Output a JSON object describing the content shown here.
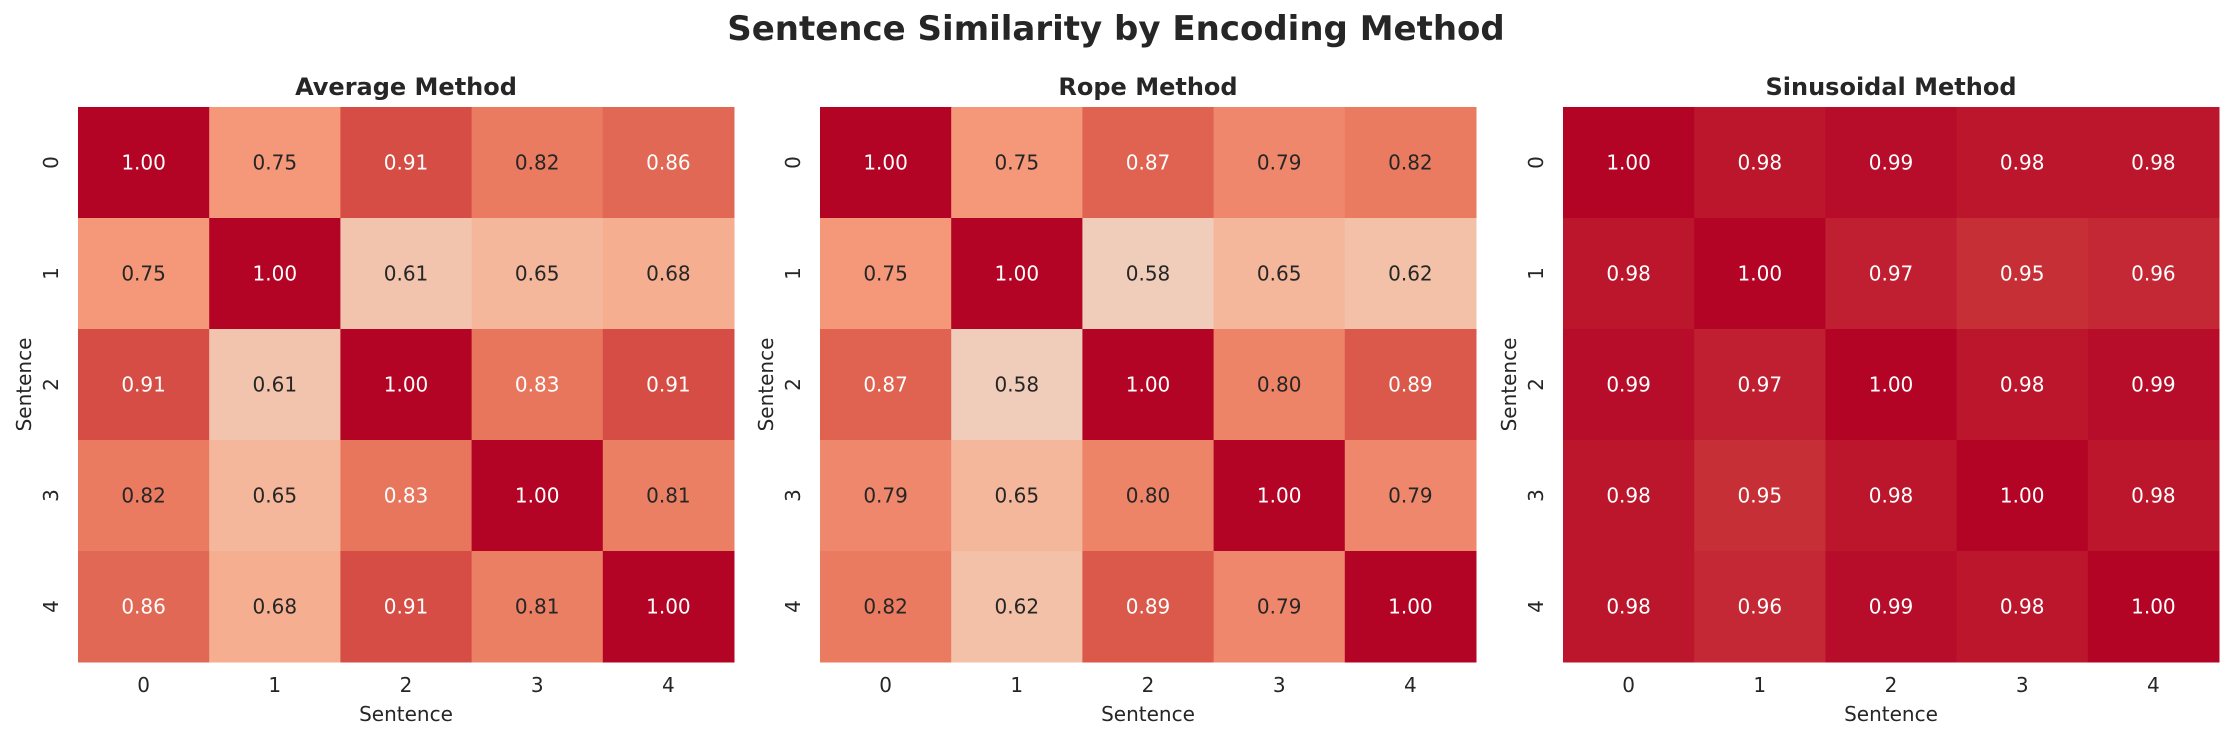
{
  "chart_data": {
    "title": "Sentence Similarity by Encoding Method",
    "panels": [
      {
        "type": "heatmap",
        "title": "Average Method",
        "xlabel": "Sentence",
        "ylabel": "Sentence",
        "x": [
          "0",
          "1",
          "2",
          "3",
          "4"
        ],
        "y": [
          "0",
          "1",
          "2",
          "3",
          "4"
        ],
        "values": [
          [
            1.0,
            0.75,
            0.91,
            0.82,
            0.86
          ],
          [
            0.75,
            1.0,
            0.61,
            0.65,
            0.68
          ],
          [
            0.91,
            0.61,
            1.0,
            0.83,
            0.91
          ],
          [
            0.82,
            0.65,
            0.83,
            1.0,
            0.81
          ],
          [
            0.86,
            0.68,
            0.91,
            0.81,
            1.0
          ]
        ],
        "colormap": "coolwarm",
        "vmin": 0,
        "vmax": 1,
        "colorbar": false
      },
      {
        "type": "heatmap",
        "title": "Rope Method",
        "xlabel": "Sentence",
        "ylabel": "Sentence",
        "x": [
          "0",
          "1",
          "2",
          "3",
          "4"
        ],
        "y": [
          "0",
          "1",
          "2",
          "3",
          "4"
        ],
        "values": [
          [
            1.0,
            0.75,
            0.87,
            0.79,
            0.82
          ],
          [
            0.75,
            1.0,
            0.58,
            0.65,
            0.62
          ],
          [
            0.87,
            0.58,
            1.0,
            0.8,
            0.89
          ],
          [
            0.79,
            0.65,
            0.8,
            1.0,
            0.79
          ],
          [
            0.82,
            0.62,
            0.89,
            0.79,
            1.0
          ]
        ],
        "colormap": "coolwarm",
        "vmin": 0,
        "vmax": 1,
        "colorbar": false
      },
      {
        "type": "heatmap",
        "title": "Sinusoidal Method",
        "xlabel": "Sentence",
        "ylabel": "Sentence",
        "x": [
          "0",
          "1",
          "2",
          "3",
          "4"
        ],
        "y": [
          "0",
          "1",
          "2",
          "3",
          "4"
        ],
        "values": [
          [
            1.0,
            0.98,
            0.99,
            0.98,
            0.98
          ],
          [
            0.98,
            1.0,
            0.97,
            0.95,
            0.96
          ],
          [
            0.99,
            0.97,
            1.0,
            0.98,
            0.99
          ],
          [
            0.98,
            0.95,
            0.98,
            1.0,
            0.98
          ],
          [
            0.98,
            0.96,
            0.99,
            0.98,
            1.0
          ]
        ],
        "colormap": "coolwarm",
        "vmin": 0,
        "vmax": 1,
        "colorbar": false
      }
    ]
  }
}
